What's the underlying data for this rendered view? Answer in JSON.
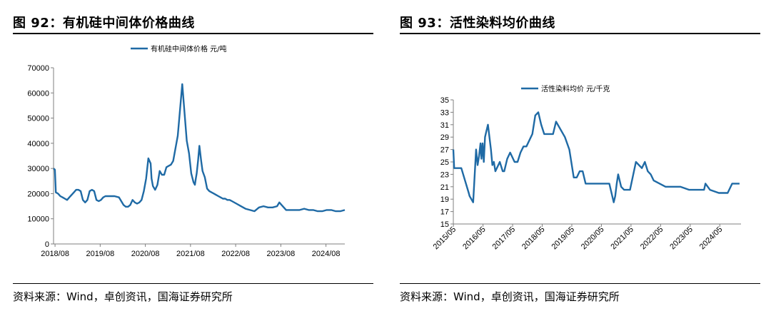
{
  "figures": [
    {
      "title": "图 92：有机硅中间体价格曲线",
      "source": "资料来源：Wind，卓创资讯，国海证券研究所"
    },
    {
      "title": "图 93：活性染料均价曲线",
      "source": "资料来源：Wind，卓创资讯，国海证券研究所"
    }
  ],
  "colors": {
    "line": "#1f6aa5",
    "axis": "#7f7f7f"
  },
  "chart_data": [
    {
      "type": "line",
      "title": "",
      "xlabel": "",
      "ylabel": "",
      "legend_position": "top-center",
      "grid": false,
      "ylim": [
        0,
        70000
      ],
      "xlim": [
        2018.55,
        2025.0
      ],
      "yticks": [
        0,
        10000,
        20000,
        30000,
        40000,
        50000,
        60000,
        70000
      ],
      "ytick_labels": [
        "0",
        "10000",
        "20000",
        "30000",
        "40000",
        "50000",
        "60000",
        "70000"
      ],
      "xticks": [
        2018.583,
        2019.583,
        2020.583,
        2021.583,
        2022.583,
        2023.583,
        2024.583
      ],
      "xtick_labels": [
        "2018/08",
        "2019/08",
        "2020/08",
        "2021/08",
        "2022/08",
        "2023/08",
        "2024/08"
      ],
      "series": [
        {
          "name": "有机硅中间体价格  元/吨",
          "x": [
            2018.55,
            2018.58,
            2018.6,
            2018.65,
            2018.7,
            2018.75,
            2018.8,
            2018.85,
            2018.9,
            2018.95,
            2019.0,
            2019.05,
            2019.1,
            2019.15,
            2019.2,
            2019.25,
            2019.3,
            2019.35,
            2019.4,
            2019.45,
            2019.5,
            2019.55,
            2019.6,
            2019.65,
            2019.7,
            2019.75,
            2019.8,
            2019.9,
            2020.0,
            2020.1,
            2020.15,
            2020.2,
            2020.25,
            2020.3,
            2020.35,
            2020.4,
            2020.45,
            2020.5,
            2020.55,
            2020.6,
            2020.65,
            2020.7,
            2020.72,
            2020.75,
            2020.8,
            2020.85,
            2020.9,
            2020.95,
            2021.0,
            2021.05,
            2021.1,
            2021.15,
            2021.2,
            2021.3,
            2021.4,
            2021.5,
            2021.55,
            2021.6,
            2021.65,
            2021.68,
            2021.7,
            2021.72,
            2021.75,
            2021.78,
            2021.82,
            2021.85,
            2021.9,
            2021.95,
            2022.0,
            2022.05,
            2022.1,
            2022.15,
            2022.2,
            2022.25,
            2022.3,
            2022.35,
            2022.4,
            2022.45,
            2022.5,
            2022.6,
            2022.7,
            2022.8,
            2022.9,
            2023.0,
            2023.1,
            2023.2,
            2023.3,
            2023.4,
            2023.5,
            2023.55,
            2023.6,
            2023.7,
            2023.8,
            2023.9,
            2024.0,
            2024.1,
            2024.2,
            2024.3,
            2024.4,
            2024.5,
            2024.6,
            2024.7,
            2024.8,
            2024.9,
            2025.0
          ],
          "y": [
            30000,
            29500,
            20500,
            20000,
            19000,
            18500,
            18000,
            17500,
            18500,
            19500,
            20500,
            21500,
            21500,
            21000,
            17500,
            16500,
            17500,
            21000,
            21500,
            21000,
            17500,
            17000,
            17500,
            18500,
            19000,
            19000,
            19000,
            19000,
            18500,
            15500,
            14800,
            14800,
            15500,
            17500,
            16500,
            16000,
            16500,
            17500,
            21000,
            26000,
            34000,
            32000,
            26000,
            23000,
            21500,
            23500,
            29000,
            27500,
            27500,
            30500,
            31000,
            31500,
            33000,
            43000,
            63500,
            41000,
            36000,
            28000,
            24500,
            23500,
            26000,
            28000,
            33000,
            39000,
            33000,
            29000,
            26500,
            22000,
            21000,
            20500,
            20000,
            19500,
            19000,
            18500,
            18000,
            18000,
            17500,
            17500,
            17000,
            16000,
            15000,
            14000,
            13500,
            13000,
            14500,
            15000,
            14500,
            14500,
            15000,
            16500,
            15500,
            13500,
            13500,
            13500,
            13500,
            14000,
            13500,
            13500,
            13000,
            13000,
            13500,
            13500,
            13000,
            13000,
            13500
          ]
        }
      ]
    },
    {
      "type": "line",
      "title": "",
      "xlabel": "",
      "ylabel": "",
      "legend_position": "top-center",
      "grid": false,
      "ylim": [
        15,
        35
      ],
      "xlim": [
        2015.33,
        2025.05
      ],
      "yticks": [
        15,
        17,
        19,
        21,
        23,
        25,
        27,
        29,
        31,
        33,
        35
      ],
      "ytick_labels": [
        "15",
        "17",
        "19",
        "21",
        "23",
        "25",
        "27",
        "29",
        "31",
        "33",
        "35"
      ],
      "xticks": [
        2015.333,
        2016.333,
        2017.333,
        2018.333,
        2019.333,
        2020.333,
        2021.333,
        2022.333,
        2023.333,
        2024.333
      ],
      "xtick_labels": [
        "2015/05",
        "2016/05",
        "2017/05",
        "2018/05",
        "2019/05",
        "2020/05",
        "2021/05",
        "2022/05",
        "2023/05",
        "2024/05"
      ],
      "series": [
        {
          "name": "活性染料均价  元/千克",
          "x": [
            2015.33,
            2015.36,
            2015.4,
            2015.6,
            2015.85,
            2015.88,
            2016.0,
            2016.1,
            2016.15,
            2016.2,
            2016.25,
            2016.28,
            2016.32,
            2016.36,
            2016.4,
            2016.45,
            2016.5,
            2016.6,
            2016.65,
            2016.7,
            2016.75,
            2016.9,
            2017.0,
            2017.05,
            2017.15,
            2017.25,
            2017.4,
            2017.5,
            2017.6,
            2017.7,
            2017.8,
            2018.0,
            2018.1,
            2018.2,
            2018.3,
            2018.4,
            2018.5,
            2018.6,
            2018.7,
            2018.8,
            2019.1,
            2019.25,
            2019.4,
            2019.5,
            2019.6,
            2019.7,
            2019.8,
            2020.0,
            2020.2,
            2020.4,
            2020.5,
            2020.6,
            2020.75,
            2020.8,
            2020.85,
            2020.9,
            2021.0,
            2021.1,
            2021.2,
            2021.3,
            2021.5,
            2021.7,
            2021.8,
            2021.9,
            2022.0,
            2022.1,
            2022.3,
            2022.5,
            2022.8,
            2023.0,
            2023.3,
            2023.6,
            2023.8,
            2023.85,
            2024.0,
            2024.3,
            2024.6,
            2024.75,
            2025.0
          ],
          "y": [
            27,
            24,
            24,
            24,
            20,
            19.5,
            18.5,
            27,
            24.5,
            26,
            28,
            25.5,
            28,
            25,
            29,
            30,
            31,
            27,
            24.5,
            25,
            23.5,
            25,
            23.5,
            23.5,
            25.5,
            26.5,
            25,
            25,
            26.5,
            27.5,
            27.5,
            29.5,
            32.5,
            33,
            31,
            29.5,
            29.5,
            29.5,
            29.5,
            31.5,
            29,
            27,
            22.5,
            22.5,
            23.5,
            23.5,
            21.5,
            21.5,
            21.5,
            21.5,
            21.5,
            21.5,
            18.5,
            19.5,
            21.5,
            23,
            21,
            20.5,
            20.5,
            20.5,
            25,
            24,
            25,
            23.5,
            23,
            22,
            21.5,
            21,
            21,
            21,
            20.5,
            20.5,
            20.5,
            21.5,
            20.5,
            20,
            20,
            21.5,
            21.5
          ]
        }
      ]
    }
  ]
}
